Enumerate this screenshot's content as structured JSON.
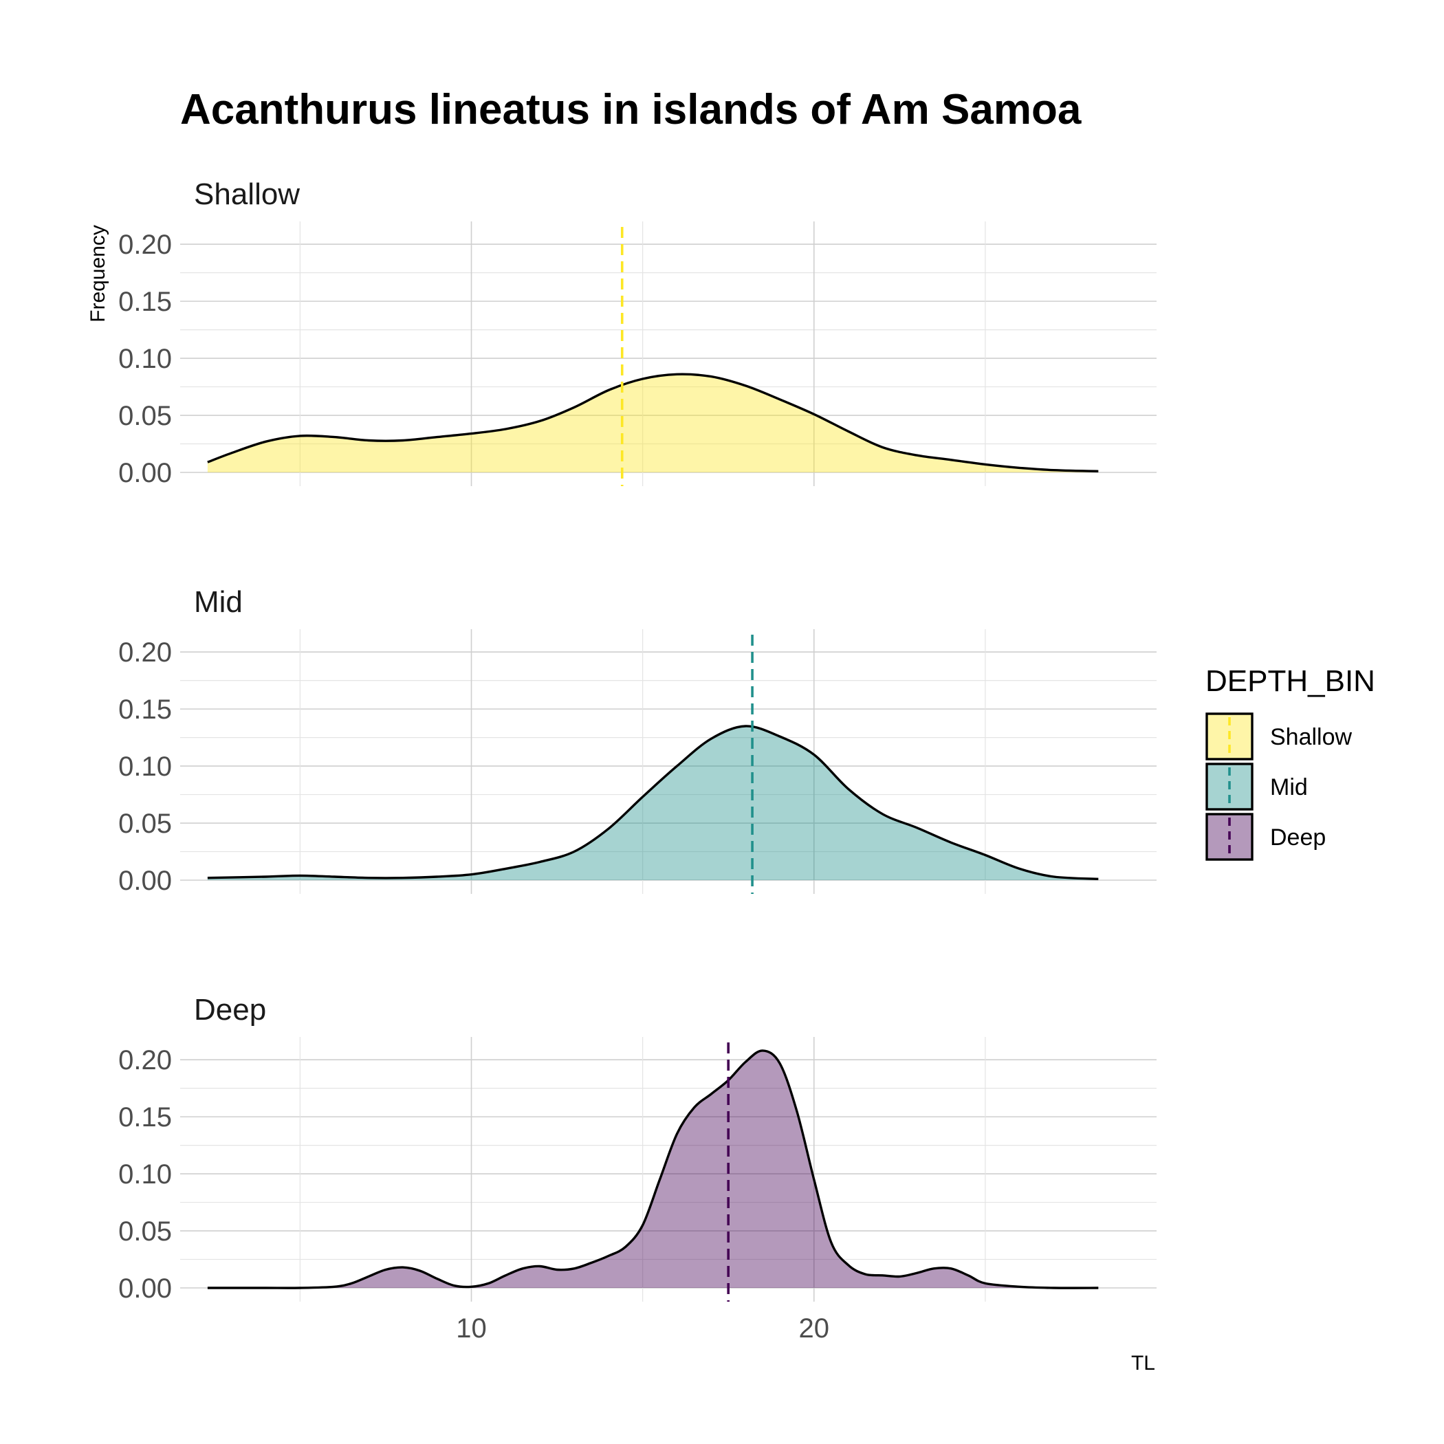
{
  "chart_data": {
    "type": "area",
    "title": "Acanthurus lineatus in islands of Am Samoa",
    "xlabel": "TL",
    "ylabel": "Frequency",
    "xlim": [
      1.5,
      30
    ],
    "ylim": [
      0,
      0.22
    ],
    "x_ticks": [
      {
        "value": 10,
        "label": "10"
      },
      {
        "value": 20,
        "label": "20"
      }
    ],
    "y_ticks": [
      {
        "value": 0,
        "label": "0.00"
      },
      {
        "value": 0.05,
        "label": "0.05"
      },
      {
        "value": 0.1,
        "label": "0.10"
      },
      {
        "value": 0.15,
        "label": "0.15"
      },
      {
        "value": 0.2,
        "label": "0.20"
      }
    ],
    "grid": true,
    "legend": {
      "title": "DEPTH_BIN",
      "position": "right",
      "entries": [
        "Shallow",
        "Mid",
        "Deep"
      ]
    },
    "series": [
      {
        "name": "Shallow",
        "color": "#FDE725",
        "mean": 14.4,
        "x": [
          2.3,
          3,
          4,
          5,
          6,
          7,
          8,
          9,
          10,
          11,
          12,
          13,
          14,
          15,
          16,
          17,
          18,
          19,
          20,
          21,
          22,
          23,
          24,
          25,
          26,
          27,
          28.3
        ],
        "y": [
          0.009,
          0.017,
          0.027,
          0.032,
          0.031,
          0.028,
          0.028,
          0.031,
          0.034,
          0.038,
          0.045,
          0.057,
          0.072,
          0.082,
          0.086,
          0.084,
          0.076,
          0.064,
          0.051,
          0.036,
          0.022,
          0.015,
          0.011,
          0.007,
          0.004,
          0.002,
          0.001
        ]
      },
      {
        "name": "Mid",
        "color": "#21908C",
        "mean": 18.2,
        "x": [
          2.3,
          4,
          5,
          6,
          7,
          8,
          9,
          10,
          11,
          12,
          13,
          14,
          15,
          16,
          17,
          18,
          19,
          20,
          21,
          22,
          23,
          24,
          25,
          26,
          27,
          28.3
        ],
        "y": [
          0.002,
          0.003,
          0.004,
          0.003,
          0.002,
          0.002,
          0.003,
          0.005,
          0.01,
          0.016,
          0.025,
          0.045,
          0.073,
          0.1,
          0.124,
          0.135,
          0.126,
          0.11,
          0.08,
          0.058,
          0.046,
          0.033,
          0.022,
          0.01,
          0.003,
          0.001
        ]
      },
      {
        "name": "Deep",
        "color": "#440154",
        "mean": 17.5,
        "x": [
          2.3,
          3,
          4,
          5,
          6,
          6.5,
          7,
          7.5,
          8,
          8.5,
          9,
          9.5,
          10,
          10.5,
          11,
          11.5,
          12,
          12.5,
          13,
          13.5,
          14,
          14.5,
          15,
          15.5,
          16,
          16.5,
          17,
          17.5,
          18,
          18.5,
          19,
          19.5,
          20,
          20.5,
          21,
          21.5,
          22,
          22.5,
          23,
          23.5,
          24,
          24.5,
          25,
          26,
          27,
          28.3
        ],
        "y": [
          0,
          0,
          0,
          0,
          0.001,
          0.004,
          0.01,
          0.016,
          0.018,
          0.015,
          0.008,
          0.002,
          0.001,
          0.004,
          0.011,
          0.017,
          0.019,
          0.016,
          0.017,
          0.022,
          0.028,
          0.036,
          0.055,
          0.095,
          0.135,
          0.158,
          0.17,
          0.182,
          0.198,
          0.208,
          0.197,
          0.155,
          0.095,
          0.04,
          0.02,
          0.012,
          0.011,
          0.01,
          0.013,
          0.017,
          0.017,
          0.011,
          0.004,
          0.001,
          0,
          0
        ]
      }
    ]
  }
}
